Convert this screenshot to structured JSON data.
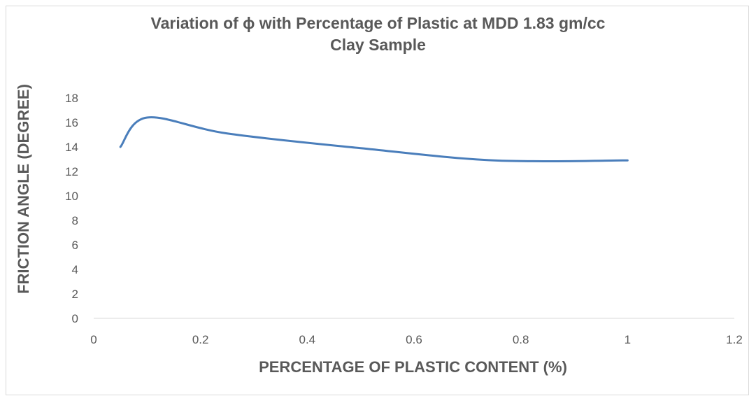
{
  "chart_data": {
    "type": "line",
    "title": "Variation of ϕ with Percentage of Plastic at MDD 1.83 gm/cc",
    "subtitle": "Clay Sample",
    "xlabel": "PERCENTAGE OF PLASTIC CONTENT (%)",
    "ylabel": "FRICTION ANGLE (DEGREE)",
    "xlim": [
      0,
      1.2
    ],
    "ylim": [
      0,
      18
    ],
    "x_ticks": [
      "0",
      "0.2",
      "0.4",
      "0.6",
      "0.8",
      "1",
      "1.2"
    ],
    "y_ticks": [
      "0",
      "2",
      "4",
      "6",
      "8",
      "10",
      "12",
      "14",
      "16",
      "18"
    ],
    "grid": false,
    "smooth": true,
    "series": [
      {
        "color": "#4a7ebb",
        "x": [
          0.05,
          0.1,
          0.25,
          0.5,
          0.75,
          1.0
        ],
        "y": [
          14.0,
          16.4,
          15.1,
          13.9,
          12.9,
          12.9
        ]
      }
    ]
  }
}
